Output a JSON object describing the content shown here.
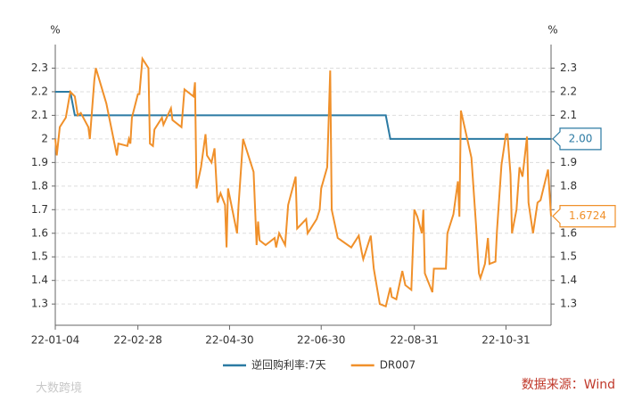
{
  "chart_data": {
    "type": "line",
    "ylabel": "%",
    "y2label": "%",
    "xlim": [
      "22-01-04",
      "22-11-30"
    ],
    "xticks": [
      "22-01-04",
      "22-02-28",
      "22-04-30",
      "22-06-30",
      "22-08-31",
      "22-10-31"
    ],
    "ylim": [
      1.21,
      2.4
    ],
    "yticks": [
      1.3,
      1.4,
      1.5,
      1.6,
      1.7,
      1.8,
      1.9,
      2,
      2.1,
      2.2,
      2.3
    ],
    "y2lim": [
      1.21,
      2.4
    ],
    "y2ticks": [
      1.3,
      1.4,
      1.5,
      1.6,
      1.7,
      1.8,
      1.9,
      2,
      2.1,
      2.2,
      2.3
    ],
    "grid": true,
    "legend": "bottom",
    "source": "数据来源：Wind",
    "watermark": "大数跨境",
    "series": [
      {
        "name": "逆回购利率:7天",
        "color": "#2b7aa3",
        "end_label": "2.00",
        "x": [
          "22-01-04",
          "22-01-14",
          "22-01-17",
          "22-08-12",
          "22-08-15",
          "22-11-30"
        ],
        "values": [
          2.2,
          2.2,
          2.1,
          2.1,
          2,
          2
        ]
      },
      {
        "name": "DR007",
        "color": "#f0902a",
        "end_label": "1.6724",
        "x": [
          "22-01-04",
          "22-01-05",
          "22-01-07",
          "22-01-11",
          "22-01-14",
          "22-01-17",
          "22-01-19",
          "22-01-21",
          "22-01-26",
          "22-01-27",
          "22-01-30",
          "22-01-31",
          "22-02-07",
          "22-02-14",
          "22-02-15",
          "22-02-21",
          "22-02-22",
          "22-02-23",
          "22-02-24",
          "22-02-28",
          "22-03-01",
          "22-03-03",
          "22-03-07",
          "22-03-08",
          "22-03-10",
          "22-03-11",
          "22-03-16",
          "22-03-17",
          "22-03-22",
          "22-03-23",
          "22-03-29",
          "22-03-31",
          "22-04-06",
          "22-04-07",
          "22-04-08",
          "22-04-11",
          "22-04-14",
          "22-04-15",
          "22-04-18",
          "22-04-20",
          "22-04-22",
          "22-04-24",
          "22-04-27",
          "22-04-28",
          "22-04-29",
          "22-05-05",
          "22-05-06",
          "22-05-09",
          "22-05-16",
          "22-05-18",
          "22-05-19",
          "22-05-20",
          "22-05-24",
          "22-05-30",
          "22-05-31",
          "22-06-02",
          "22-06-06",
          "22-06-08",
          "22-06-13",
          "22-06-14",
          "22-06-20",
          "22-06-21",
          "22-06-27",
          "22-06-29",
          "22-06-30",
          "22-07-04",
          "22-07-06",
          "22-07-07",
          "22-07-11",
          "22-07-20",
          "22-07-25",
          "22-07-27",
          "22-07-28",
          "22-08-02",
          "22-08-04",
          "22-08-08",
          "22-08-12",
          "22-08-15",
          "22-08-16",
          "22-08-19",
          "22-08-23",
          "22-08-25",
          "22-08-29",
          "22-08-31",
          "22-09-02",
          "22-09-05",
          "22-09-06",
          "22-09-07",
          "22-09-12",
          "22-09-13",
          "22-09-21",
          "22-09-22",
          "22-09-26",
          "22-09-29",
          "22-09-30",
          "22-10-01",
          "22-10-08",
          "22-10-11",
          "22-10-13",
          "22-10-14",
          "22-10-17",
          "22-10-19",
          "22-10-20",
          "22-10-24",
          "22-10-25",
          "22-10-28",
          "22-10-31",
          "22-11-01",
          "22-11-03",
          "22-11-04",
          "22-11-07",
          "22-11-09",
          "22-11-11",
          "22-11-14",
          "22-11-15",
          "22-11-18",
          "22-11-21",
          "22-11-23",
          "22-11-28",
          "22-11-30"
        ],
        "values": [
          2.0,
          1.93,
          2.05,
          2.09,
          2.2,
          2.18,
          2.1,
          2.11,
          2.05,
          2.0,
          2.25,
          2.3,
          2.15,
          1.93,
          1.98,
          1.97,
          2.0,
          1.98,
          2.09,
          2.19,
          2.19,
          2.34,
          2.3,
          1.98,
          1.97,
          2.04,
          2.09,
          2.06,
          2.13,
          2.08,
          2.05,
          2.21,
          2.18,
          2.24,
          1.79,
          1.88,
          2.02,
          1.93,
          1.9,
          1.96,
          1.73,
          1.77,
          1.72,
          1.54,
          1.79,
          1.6,
          1.72,
          2.0,
          1.86,
          1.55,
          1.65,
          1.57,
          1.55,
          1.58,
          1.54,
          1.6,
          1.55,
          1.72,
          1.84,
          1.62,
          1.66,
          1.6,
          1.66,
          1.7,
          1.79,
          1.88,
          2.29,
          1.7,
          1.58,
          1.54,
          1.59,
          1.52,
          1.49,
          1.59,
          1.45,
          1.3,
          1.29,
          1.37,
          1.33,
          1.32,
          1.44,
          1.38,
          1.36,
          1.7,
          1.67,
          1.6,
          1.7,
          1.43,
          1.35,
          1.45,
          1.45,
          1.6,
          1.68,
          1.82,
          1.67,
          2.12,
          1.92,
          1.64,
          1.43,
          1.41,
          1.47,
          1.58,
          1.47,
          1.48,
          1.61,
          1.89,
          2.02,
          2.02,
          1.85,
          1.6,
          1.7,
          1.88,
          1.84,
          2.01,
          1.73,
          1.6,
          1.73,
          1.74,
          1.87,
          1.6724
        ]
      }
    ]
  }
}
